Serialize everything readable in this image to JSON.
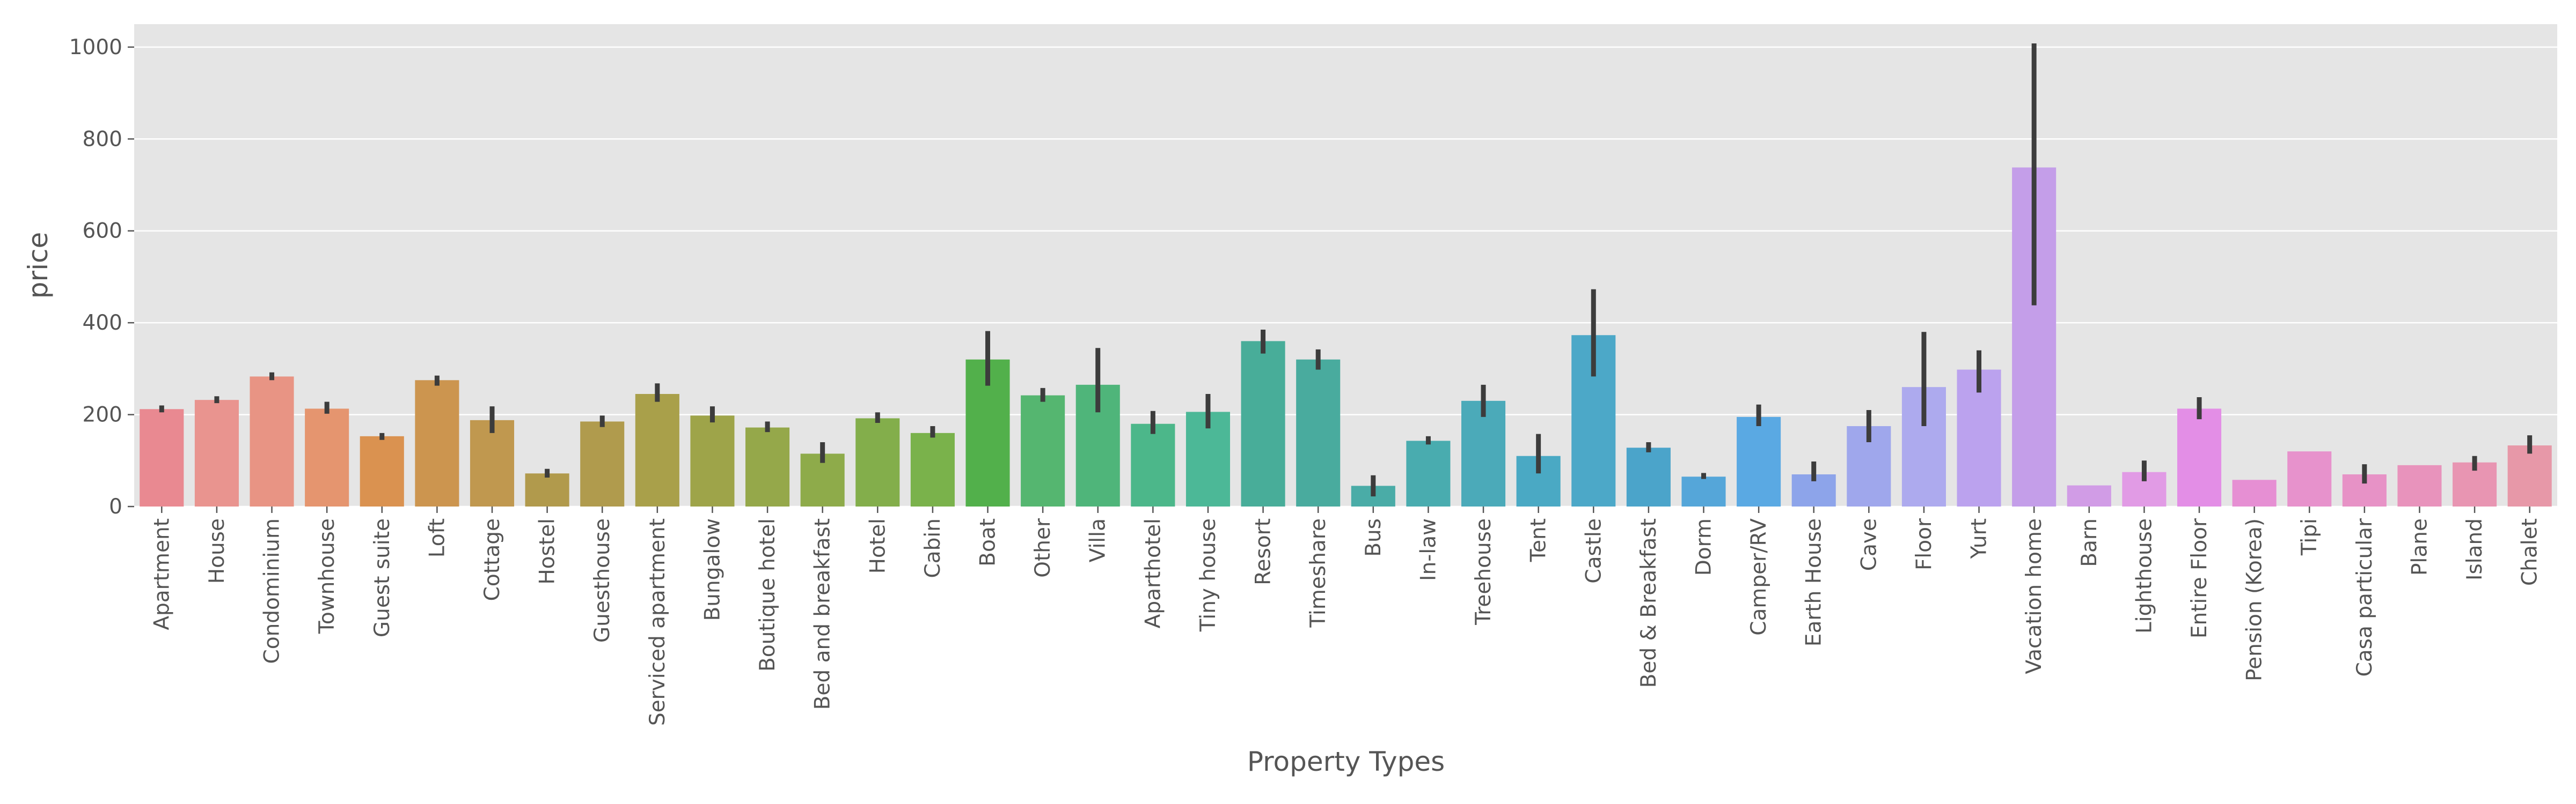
{
  "chart_data": {
    "type": "bar",
    "title": "",
    "xlabel": "Property Types",
    "ylabel": "price",
    "ylim": [
      0,
      1050
    ],
    "yticks": [
      0,
      200,
      400,
      600,
      800,
      1000
    ],
    "grid": true,
    "legend": "none",
    "error_bars": true,
    "colors": {
      "plot_background": "#e5e5e5",
      "grid": "#ffffff",
      "error_bar": "#3c3c3c",
      "text": "#555555"
    },
    "categories": [
      "Apartment",
      "House",
      "Condominium",
      "Townhouse",
      "Guest suite",
      "Loft",
      "Cottage",
      "Hostel",
      "Guesthouse",
      "Serviced apartment",
      "Bungalow",
      "Boutique hotel",
      "Bed and breakfast",
      "Hotel",
      "Cabin",
      "Boat",
      "Other",
      "Villa",
      "Aparthotel",
      "Tiny house",
      "Resort",
      "Timeshare",
      "Bus",
      "In-law",
      "Treehouse",
      "Tent",
      "Castle",
      "Bed & Breakfast",
      "Dorm",
      "Camper/RV",
      "Earth House",
      "Cave",
      "Floor",
      "Yurt",
      "Vacation home",
      "Barn",
      "Lighthouse",
      "Entire Floor",
      "Pension (Korea)",
      "Tipi",
      "Casa particular",
      "Plane",
      "Island",
      "Chalet"
    ],
    "values": [
      212,
      232,
      283,
      213,
      153,
      275,
      188,
      72,
      185,
      245,
      198,
      172,
      115,
      192,
      160,
      320,
      242,
      265,
      180,
      206,
      360,
      320,
      45,
      143,
      230,
      110,
      373,
      128,
      65,
      195,
      70,
      175,
      260,
      298,
      738,
      46,
      75,
      213,
      58,
      120,
      70,
      90,
      96,
      133
    ],
    "error_low": [
      205,
      225,
      275,
      202,
      145,
      263,
      160,
      63,
      173,
      228,
      183,
      162,
      95,
      182,
      150,
      263,
      228,
      205,
      158,
      170,
      333,
      298,
      22,
      135,
      195,
      72,
      283,
      118,
      60,
      175,
      55,
      140,
      175,
      248,
      438,
      46,
      55,
      190,
      58,
      120,
      50,
      90,
      78,
      115
    ],
    "error_high": [
      220,
      240,
      292,
      228,
      160,
      285,
      218,
      82,
      198,
      268,
      218,
      185,
      140,
      205,
      175,
      382,
      258,
      345,
      208,
      245,
      385,
      342,
      68,
      153,
      265,
      158,
      473,
      140,
      73,
      222,
      98,
      210,
      380,
      340,
      1008,
      46,
      100,
      238,
      58,
      120,
      92,
      90,
      110,
      155
    ],
    "bar_colors": [
      "#e98991",
      "#e9948f",
      "#e89484",
      "#e5956f",
      "#da9250",
      "#cc954f",
      "#c0984f",
      "#b19a4c",
      "#b09b4d",
      "#a9a04a",
      "#9ea449",
      "#95a84a",
      "#8eab4a",
      "#83ae4b",
      "#7ab24b",
      "#52b04b",
      "#55b670",
      "#4fb57a",
      "#4cb78a",
      "#4cb897",
      "#48ad99",
      "#49ab9e",
      "#4aaca7",
      "#49acaf",
      "#4baab9",
      "#4aa9c4",
      "#4ca8c8",
      "#4ba4ca",
      "#55a6d9",
      "#5aa9e3",
      "#8da4ea",
      "#9fa7ec",
      "#adaaee",
      "#bba2ee",
      "#c49ee9",
      "#d19ce6",
      "#e19be5",
      "#e38ee6",
      "#e68fd3",
      "#e792cc",
      "#e792c6",
      "#e893bc",
      "#e895b2",
      "#e798a8"
    ]
  }
}
